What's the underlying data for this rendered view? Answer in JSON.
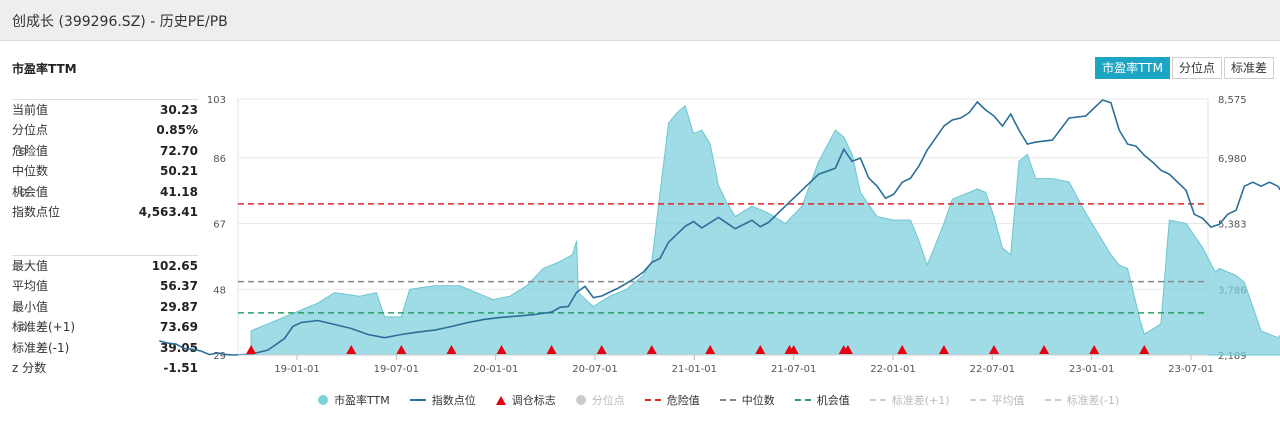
{
  "window": {
    "title": "创成长 (399296.SZ) - 历史PE/PB"
  },
  "section_title": "市盈率TTM",
  "tabs": [
    {
      "label": "市盈率TTM",
      "active": true
    },
    {
      "label": "分位点",
      "active": false
    },
    {
      "label": "标准差",
      "active": false
    }
  ],
  "stats_top": [
    {
      "label": "当前值",
      "value": "30.23",
      "gear": false
    },
    {
      "label": "分位点",
      "value": "0.85%",
      "gear": false
    },
    {
      "label": "危险值",
      "value": "72.70",
      "gear": true
    },
    {
      "label": "中位数",
      "value": "50.21",
      "gear": false
    },
    {
      "label": "机会值",
      "value": "41.18",
      "gear": true
    },
    {
      "label": "指数点位",
      "value": "4,563.41",
      "gear": false
    }
  ],
  "stats_bottom": [
    {
      "label": "最大值",
      "value": "102.65",
      "gear": false
    },
    {
      "label": "平均值",
      "value": "56.37",
      "gear": false
    },
    {
      "label": "最小值",
      "value": "29.87",
      "gear": false
    },
    {
      "label": "标准差(+1)",
      "value": "73.69",
      "gear": true
    },
    {
      "label": "标准差(-1)",
      "value": "39.05",
      "gear": false
    },
    {
      "label": "z 分数",
      "value": "-1.51",
      "gear": false
    }
  ],
  "legend": [
    {
      "label": "市盈率TTM",
      "marker": "circle",
      "color": "#7ccfdc",
      "muted": false
    },
    {
      "label": "指数点位",
      "marker": "line",
      "color": "#2a6f97",
      "muted": false
    },
    {
      "label": "调仓标志",
      "marker": "triangle",
      "color": "#e60012",
      "muted": false
    },
    {
      "label": "分位点",
      "marker": "circle",
      "color": "#cccccc",
      "muted": true
    },
    {
      "label": "危险值",
      "marker": "dash",
      "color": "#d9262b",
      "muted": false
    },
    {
      "label": "中位数",
      "marker": "dash",
      "color": "#888888",
      "muted": false
    },
    {
      "label": "机会值",
      "marker": "dash",
      "color": "#2a9d6a",
      "muted": false
    },
    {
      "label": "标准差(+1)",
      "marker": "dash",
      "color": "#cccccc",
      "muted": true
    },
    {
      "label": "平均值",
      "marker": "dash",
      "color": "#cccccc",
      "muted": true
    },
    {
      "label": "标准差(-1)",
      "marker": "dash",
      "color": "#cccccc",
      "muted": true
    }
  ],
  "chart_data": {
    "type": "area",
    "x_tick_labels": [
      "19-01-01",
      "19-07-01",
      "20-01-01",
      "20-07-01",
      "21-01-01",
      "21-07-01",
      "22-01-01",
      "22-07-01",
      "23-01-01",
      "23-07-01"
    ],
    "x_tick_pos": [
      0.055,
      0.174,
      0.293,
      0.412,
      0.531,
      0.65,
      0.769,
      0.888,
      1.007,
      1.126
    ],
    "x_range_years": [
      -0.11,
      1.2
    ],
    "y_left_ticks": [
      29,
      48,
      67,
      86,
      103
    ],
    "y_left_range": [
      29,
      103
    ],
    "y_right_ticks": [
      "2,189",
      "3,786",
      "5,383",
      "6,980",
      "8,575"
    ],
    "y_right_range": [
      2189,
      8575
    ],
    "reference_lines": {
      "danger": 72.7,
      "median": 50.21,
      "opportunity": 41.18,
      "std_plus_1": 73.69,
      "mean": 56.37,
      "std_minus_1": 39.05,
      "colors": {
        "danger": "#d9262b",
        "median": "#888888",
        "opportunity": "#2a9d6a"
      }
    },
    "series": [
      {
        "name": "市盈率TTM",
        "type": "area",
        "color": "#7ccfdc",
        "points": [
          [
            0.0,
            36
          ],
          [
            0.02,
            38
          ],
          [
            0.04,
            40
          ],
          [
            0.05,
            41
          ],
          [
            0.06,
            42
          ],
          [
            0.08,
            44
          ],
          [
            0.1,
            47
          ],
          [
            0.13,
            46
          ],
          [
            0.15,
            47
          ],
          [
            0.16,
            40
          ],
          [
            0.18,
            40
          ],
          [
            0.19,
            48
          ],
          [
            0.22,
            49
          ],
          [
            0.25,
            49
          ],
          [
            0.27,
            47
          ],
          [
            0.29,
            45
          ],
          [
            0.31,
            46
          ],
          [
            0.33,
            49
          ],
          [
            0.35,
            54
          ],
          [
            0.37,
            56
          ],
          [
            0.385,
            58
          ],
          [
            0.39,
            62
          ],
          [
            0.392,
            47
          ],
          [
            0.41,
            43
          ],
          [
            0.43,
            46
          ],
          [
            0.45,
            48
          ],
          [
            0.47,
            52
          ],
          [
            0.48,
            56
          ],
          [
            0.5,
            96
          ],
          [
            0.51,
            99
          ],
          [
            0.52,
            101
          ],
          [
            0.53,
            93
          ],
          [
            0.54,
            94
          ],
          [
            0.55,
            90
          ],
          [
            0.56,
            78
          ],
          [
            0.57,
            73
          ],
          [
            0.58,
            69
          ],
          [
            0.6,
            72
          ],
          [
            0.62,
            70
          ],
          [
            0.64,
            67
          ],
          [
            0.66,
            72
          ],
          [
            0.68,
            85
          ],
          [
            0.7,
            94
          ],
          [
            0.71,
            92
          ],
          [
            0.72,
            87
          ],
          [
            0.73,
            76
          ],
          [
            0.75,
            69
          ],
          [
            0.77,
            68
          ],
          [
            0.79,
            68
          ],
          [
            0.8,
            62
          ],
          [
            0.81,
            55
          ],
          [
            0.82,
            61
          ],
          [
            0.83,
            67
          ],
          [
            0.84,
            74
          ],
          [
            0.86,
            76
          ],
          [
            0.87,
            77
          ],
          [
            0.88,
            76
          ],
          [
            0.89,
            69
          ],
          [
            0.9,
            60
          ],
          [
            0.91,
            58
          ],
          [
            0.92,
            85
          ],
          [
            0.93,
            87
          ],
          [
            0.94,
            80
          ],
          [
            0.96,
            80
          ],
          [
            0.98,
            79
          ],
          [
            1.0,
            70
          ],
          [
            1.02,
            62
          ],
          [
            1.03,
            58
          ],
          [
            1.04,
            55
          ],
          [
            1.05,
            54
          ],
          [
            1.065,
            39
          ],
          [
            1.07,
            35
          ],
          [
            1.09,
            38
          ],
          [
            1.1,
            68
          ],
          [
            1.12,
            67
          ],
          [
            1.14,
            60
          ],
          [
            1.155,
            53
          ],
          [
            1.16,
            54
          ],
          [
            1.18,
            52
          ],
          [
            1.19,
            50
          ],
          [
            1.21,
            36
          ],
          [
            1.23,
            34
          ],
          [
            1.25,
            39
          ],
          [
            1.27,
            42
          ],
          [
            1.29,
            46
          ],
          [
            1.31,
            46
          ],
          [
            1.33,
            40
          ],
          [
            1.34,
            36
          ],
          [
            1.36,
            36
          ],
          [
            1.38,
            32
          ],
          [
            1.4,
            31
          ],
          [
            1.42,
            31
          ],
          [
            1.425,
            30.5
          ],
          [
            1.43,
            35
          ],
          [
            1.45,
            34
          ],
          [
            1.47,
            32.5
          ],
          [
            1.49,
            30.2
          ]
        ]
      },
      {
        "name": "指数点位",
        "type": "line",
        "color": "#2a6f97",
        "points": [
          [
            -0.11,
            2540
          ],
          [
            -0.1,
            2485
          ],
          [
            -0.09,
            2460
          ],
          [
            -0.08,
            2350
          ],
          [
            -0.07,
            2330
          ],
          [
            -0.06,
            2290
          ],
          [
            -0.05,
            2200
          ],
          [
            -0.04,
            2240
          ],
          [
            -0.03,
            2200
          ],
          [
            -0.02,
            2190
          ],
          [
            0.0,
            2210
          ],
          [
            0.02,
            2310
          ],
          [
            0.04,
            2600
          ],
          [
            0.05,
            2900
          ],
          [
            0.06,
            3000
          ],
          [
            0.08,
            3050
          ],
          [
            0.1,
            2950
          ],
          [
            0.12,
            2850
          ],
          [
            0.14,
            2700
          ],
          [
            0.16,
            2620
          ],
          [
            0.18,
            2700
          ],
          [
            0.2,
            2760
          ],
          [
            0.22,
            2810
          ],
          [
            0.24,
            2900
          ],
          [
            0.26,
            3000
          ],
          [
            0.28,
            3080
          ],
          [
            0.3,
            3130
          ],
          [
            0.32,
            3160
          ],
          [
            0.34,
            3200
          ],
          [
            0.36,
            3260
          ],
          [
            0.37,
            3380
          ],
          [
            0.38,
            3400
          ],
          [
            0.39,
            3750
          ],
          [
            0.4,
            3900
          ],
          [
            0.41,
            3620
          ],
          [
            0.42,
            3660
          ],
          [
            0.43,
            3760
          ],
          [
            0.44,
            3860
          ],
          [
            0.45,
            3980
          ],
          [
            0.46,
            4110
          ],
          [
            0.47,
            4260
          ],
          [
            0.48,
            4500
          ],
          [
            0.49,
            4600
          ],
          [
            0.5,
            5000
          ],
          [
            0.52,
            5400
          ],
          [
            0.53,
            5520
          ],
          [
            0.54,
            5360
          ],
          [
            0.56,
            5620
          ],
          [
            0.58,
            5340
          ],
          [
            0.6,
            5550
          ],
          [
            0.61,
            5390
          ],
          [
            0.62,
            5500
          ],
          [
            0.64,
            5900
          ],
          [
            0.66,
            6300
          ],
          [
            0.68,
            6700
          ],
          [
            0.7,
            6850
          ],
          [
            0.71,
            7320
          ],
          [
            0.72,
            7020
          ],
          [
            0.73,
            7100
          ],
          [
            0.74,
            6600
          ],
          [
            0.75,
            6400
          ],
          [
            0.76,
            6100
          ],
          [
            0.77,
            6200
          ],
          [
            0.78,
            6500
          ],
          [
            0.79,
            6600
          ],
          [
            0.8,
            6900
          ],
          [
            0.81,
            7300
          ],
          [
            0.82,
            7600
          ],
          [
            0.83,
            7900
          ],
          [
            0.84,
            8050
          ],
          [
            0.85,
            8100
          ],
          [
            0.86,
            8230
          ],
          [
            0.87,
            8500
          ],
          [
            0.88,
            8300
          ],
          [
            0.89,
            8150
          ],
          [
            0.9,
            7900
          ],
          [
            0.91,
            8200
          ],
          [
            0.92,
            7800
          ],
          [
            0.93,
            7450
          ],
          [
            0.94,
            7500
          ],
          [
            0.96,
            7550
          ],
          [
            0.98,
            8100
          ],
          [
            1.0,
            8150
          ],
          [
            1.02,
            8550
          ],
          [
            1.03,
            8480
          ],
          [
            1.04,
            7800
          ],
          [
            1.05,
            7450
          ],
          [
            1.06,
            7400
          ],
          [
            1.07,
            7170
          ],
          [
            1.08,
            7000
          ],
          [
            1.09,
            6800
          ],
          [
            1.1,
            6700
          ],
          [
            1.12,
            6300
          ],
          [
            1.13,
            5700
          ],
          [
            1.14,
            5600
          ],
          [
            1.15,
            5380
          ],
          [
            1.16,
            5450
          ],
          [
            1.17,
            5700
          ],
          [
            1.18,
            5800
          ],
          [
            1.19,
            6400
          ],
          [
            1.2,
            6500
          ],
          [
            1.21,
            6400
          ],
          [
            1.22,
            6500
          ],
          [
            1.23,
            6400
          ],
          [
            1.24,
            6100
          ],
          [
            1.25,
            6300
          ],
          [
            1.26,
            5900
          ],
          [
            1.27,
            5900
          ],
          [
            1.28,
            5750
          ],
          [
            1.29,
            5800
          ],
          [
            1.3,
            5900
          ],
          [
            1.31,
            5700
          ],
          [
            1.32,
            5800
          ],
          [
            1.33,
            5500
          ],
          [
            1.34,
            6000
          ],
          [
            1.35,
            6000
          ],
          [
            1.36,
            5900
          ],
          [
            1.37,
            5800
          ],
          [
            1.38,
            5600
          ],
          [
            1.39,
            5550
          ],
          [
            1.4,
            5500
          ],
          [
            1.41,
            5600
          ],
          [
            1.42,
            5550
          ],
          [
            1.43,
            5400
          ],
          [
            1.44,
            5250
          ],
          [
            1.45,
            5300
          ],
          [
            1.46,
            5200
          ],
          [
            1.47,
            5050
          ],
          [
            1.48,
            5000
          ],
          [
            1.49,
            4800
          ],
          [
            1.5,
            4563
          ]
        ]
      },
      {
        "name": "调仓标志",
        "type": "marker",
        "color": "#e60012",
        "x": [
          0.0,
          0.12,
          0.18,
          0.24,
          0.3,
          0.36,
          0.42,
          0.48,
          0.55,
          0.61,
          0.645,
          0.65,
          0.71,
          0.715,
          0.78,
          0.83,
          0.89,
          0.95,
          1.01,
          1.07
        ]
      }
    ]
  }
}
